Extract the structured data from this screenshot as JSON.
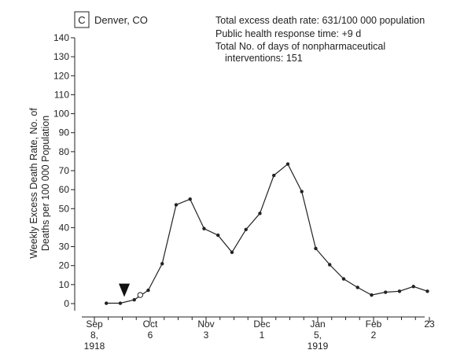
{
  "panel": {
    "letter": "C",
    "location": "Denver, CO"
  },
  "stats": {
    "line1": "Total excess death rate: 631/100 000 population",
    "line2": "Public health response time: +9 d",
    "line3": "Total No. of days of nonpharmaceutical",
    "line4": "interventions: 151"
  },
  "chart_data": {
    "type": "line",
    "ylabel_line1": "Weekly Excess Death Rate, No. of",
    "ylabel_line2": "Deaths per 100 000 Population",
    "ylim": [
      0,
      140
    ],
    "yticks": [
      0,
      10,
      20,
      30,
      40,
      50,
      60,
      70,
      80,
      90,
      100,
      110,
      120,
      130,
      140
    ],
    "xticks": [
      {
        "lines": [
          "Sep",
          "8,",
          "1918"
        ]
      },
      {
        "lines": [
          "Oct",
          "6"
        ]
      },
      {
        "lines": [
          "Nov",
          "3"
        ]
      },
      {
        "lines": [
          "Dec",
          "1"
        ]
      },
      {
        "lines": [
          "Jan",
          "5,",
          "1919"
        ]
      },
      {
        "lines": [
          "Feb",
          "2"
        ]
      },
      {
        "lines": [
          "23"
        ]
      }
    ],
    "series": [
      {
        "x": [
          "1918-09-14",
          "1918-09-21",
          "1918-09-28",
          "1918-10-05",
          "1918-10-12",
          "1918-10-19",
          "1918-10-26",
          "1918-11-02",
          "1918-11-09",
          "1918-11-16",
          "1918-11-23",
          "1918-11-30",
          "1918-12-07",
          "1918-12-14",
          "1918-12-21",
          "1918-12-28",
          "1919-01-04",
          "1919-01-11",
          "1919-01-18",
          "1919-01-25",
          "1919-02-01",
          "1919-02-08",
          "1919-02-15",
          "1919-02-22"
        ],
        "values": [
          0.2,
          0.2,
          2,
          7,
          21,
          52,
          55,
          39.5,
          36,
          27,
          39,
          47.5,
          67.5,
          73.5,
          59,
          29,
          20.5,
          13,
          8.5,
          4.5,
          6,
          6.5,
          9,
          6.5
        ]
      }
    ],
    "open_marker": {
      "x": "1918-10-01",
      "value": 4.5
    },
    "arrow_marker": {
      "x": "1918-09-23"
    }
  }
}
